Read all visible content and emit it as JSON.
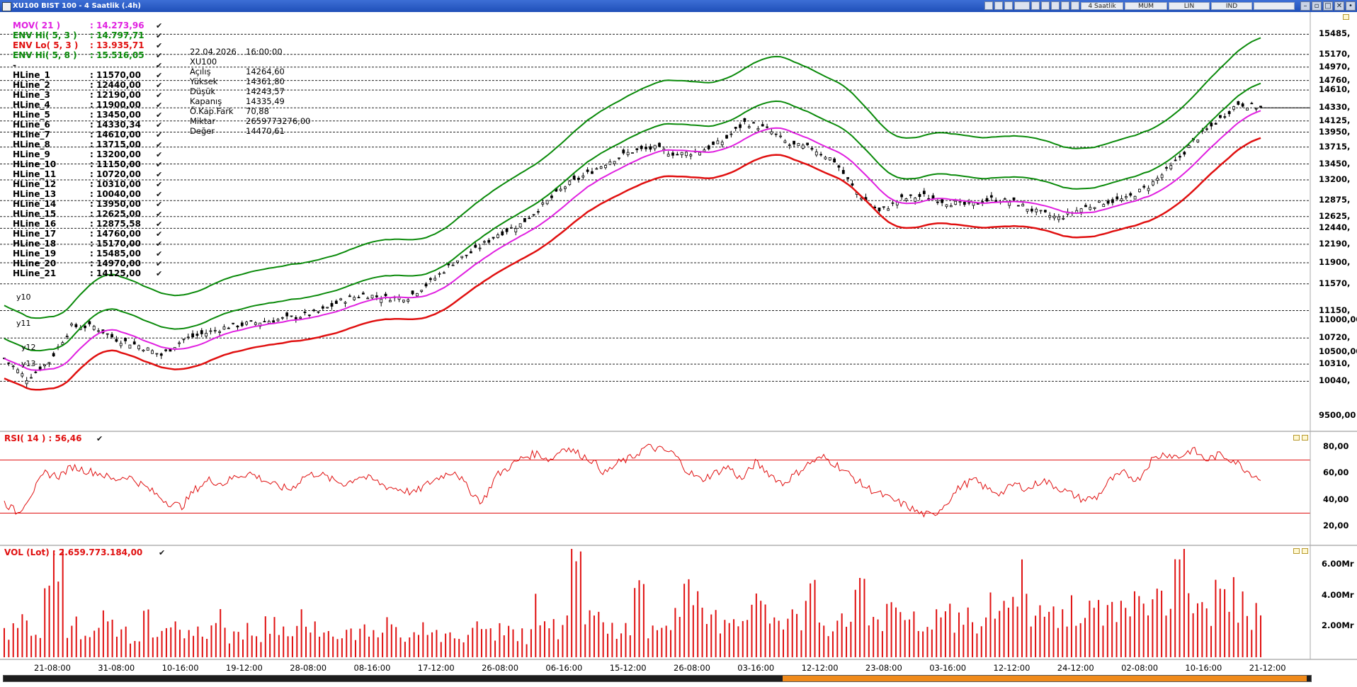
{
  "window": {
    "title": "XU100 BIST 100 - 4 Saatlik (.4h)"
  },
  "toolbar": {
    "period_label": "4 Saatlik",
    "chart_type": "MUM",
    "scale": "LIN",
    "indicator": "IND"
  },
  "legend": {
    "mov": {
      "label": "MOV( 21 )",
      "value": ": 14.273,96"
    },
    "env_hi_53": {
      "label": "ENV Hi( 5, 3 )",
      "value": ": 14.797,71"
    },
    "env_lo_53": {
      "label": "ENV Lo( 5, 3 )",
      "value": ": 13.935,71"
    },
    "env_hi_58": {
      "label": "ENV Hi( 5, 8 )",
      "value": ": 15.516,05"
    },
    "dash": "-",
    "hlines": [
      {
        "label": "HLine_1",
        "value": ": 11570,00"
      },
      {
        "label": "HLine_2",
        "value": ": 12440,00"
      },
      {
        "label": "HLine_3",
        "value": ": 12190,00"
      },
      {
        "label": "HLine_4",
        "value": ": 11900,00"
      },
      {
        "label": "HLine_5",
        "value": ": 13450,00"
      },
      {
        "label": "HLine_6",
        "value": ": 14330,34"
      },
      {
        "label": "HLine_7",
        "value": ": 14610,00"
      },
      {
        "label": "HLine_8",
        "value": ": 13715,00"
      },
      {
        "label": "HLine_9",
        "value": ": 13200,00"
      },
      {
        "label": "HLine_10",
        "value": ": 11150,00"
      },
      {
        "label": "HLine_11",
        "value": ": 10720,00"
      },
      {
        "label": "HLine_12",
        "value": ": 10310,00"
      },
      {
        "label": "HLine_13",
        "value": ": 10040,00"
      },
      {
        "label": "HLine_14",
        "value": ": 13950,00"
      },
      {
        "label": "HLine_15",
        "value": ": 12625,00"
      },
      {
        "label": "HLine_16",
        "value": ": 12875,58"
      },
      {
        "label": "HLine_17",
        "value": ": 14760,00"
      },
      {
        "label": "HLine_18",
        "value": ": 15170,00"
      },
      {
        "label": "HLine_19",
        "value": ": 15485,00"
      },
      {
        "label": "HLine_20",
        "value": ": 14970,00"
      },
      {
        "label": "HLine_21",
        "value": ": 14125,00"
      }
    ]
  },
  "info_box": {
    "date": "22.04.2026",
    "time": "16:00:00",
    "symbol": "XU100",
    "rows": [
      {
        "k": "Açılış",
        "v": "14264,60"
      },
      {
        "k": "Yüksek",
        "v": "14361,80"
      },
      {
        "k": "Düşük",
        "v": "14243,57"
      },
      {
        "k": "Kapanış",
        "v": "14335,49"
      },
      {
        "k": "Ö.Kap.Fark",
        "v": "70,88"
      },
      {
        "k": "Miktar",
        "v": "2659773276,00"
      },
      {
        "k": "Değer",
        "v": "14470,61"
      }
    ]
  },
  "annotations": {
    "y10": "y10",
    "y11": "y11",
    "y12": "y12",
    "y13": "y13"
  },
  "rsi": {
    "label": "RSI( 14 ) : 56,46",
    "levels": [
      30,
      70
    ],
    "ticks": [
      "80,00",
      "60,00",
      "40,00",
      "20,00"
    ]
  },
  "vol": {
    "label": "VOL (Lot) : 2.659.773.184,00",
    "ticks": [
      "6.00Mr",
      "4.00Mr",
      "2.00Mr"
    ]
  },
  "x_labels": [
    "21-08:00",
    "31-08:00",
    "10-16:00",
    "19-12:00",
    "28-08:00",
    "08-16:00",
    "17-12:00",
    "26-08:00",
    "06-16:00",
    "15-12:00",
    "26-08:00",
    "03-16:00",
    "12-12:00",
    "23-08:00",
    "03-16:00",
    "12-12:00",
    "24-12:00",
    "02-08:00",
    "10-16:00",
    "21-12:00"
  ],
  "colors": {
    "mov": "#e020e0",
    "env_hi": "#0a8a0a",
    "env_lo": "#e01010",
    "rsi": "#e01010",
    "vol": "#e01010",
    "title_bg": "#2a5cc8"
  },
  "chart_data": [
    {
      "type": "line",
      "title": "XU100 BIST 100 - 4 Saatlik (.4h)",
      "hlines": [
        11570,
        12440,
        12190,
        11900,
        13450,
        14330.34,
        14610,
        13715,
        13200,
        11150,
        10720,
        10310,
        10040,
        13950,
        12625,
        12875.58,
        14760,
        15170,
        15485,
        14970,
        14125
      ],
      "y_ticks": [
        "15485,",
        "15170,",
        "14970,",
        "14760,",
        "14610,",
        "14330,",
        "14125,",
        "13950,",
        "13715,",
        "13450,",
        "13200,",
        "12875,",
        "12625,",
        "12440,",
        "12190,",
        "11900,",
        "11570,",
        "11150,",
        "11000,00",
        "10720,",
        "10500,00",
        "10310,",
        "10040,",
        "9500,00"
      ],
      "ylim": [
        9300,
        15800
      ],
      "close_path": [
        [
          0,
          10400
        ],
        [
          10,
          10080
        ],
        [
          20,
          10350
        ],
        [
          30,
          10900
        ],
        [
          40,
          10900
        ],
        [
          50,
          10700
        ],
        [
          60,
          10600
        ],
        [
          70,
          10450
        ],
        [
          80,
          10700
        ],
        [
          90,
          10800
        ],
        [
          100,
          10900
        ],
        [
          110,
          10950
        ],
        [
          120,
          11000
        ],
        [
          130,
          11050
        ],
        [
          140,
          11120
        ],
        [
          150,
          11300
        ],
        [
          160,
          11400
        ],
        [
          170,
          11350
        ],
        [
          180,
          11360
        ],
        [
          190,
          11600
        ],
        [
          200,
          11900
        ],
        [
          210,
          12100
        ],
        [
          220,
          12350
        ],
        [
          230,
          12500
        ],
        [
          240,
          12800
        ],
        [
          250,
          13100
        ],
        [
          260,
          13300
        ],
        [
          270,
          13500
        ],
        [
          280,
          13650
        ],
        [
          290,
          13700
        ],
        [
          300,
          13600
        ],
        [
          310,
          13650
        ],
        [
          320,
          13800
        ],
        [
          330,
          14100
        ],
        [
          340,
          14000
        ],
        [
          350,
          13750
        ],
        [
          360,
          13700
        ],
        [
          370,
          13500
        ],
        [
          380,
          13000
        ],
        [
          390,
          12700
        ],
        [
          400,
          12900
        ],
        [
          410,
          12950
        ],
        [
          420,
          12850
        ],
        [
          430,
          12800
        ],
        [
          440,
          12900
        ],
        [
          450,
          12850
        ],
        [
          460,
          12700
        ],
        [
          470,
          12600
        ],
        [
          480,
          12750
        ],
        [
          490,
          12850
        ],
        [
          500,
          12900
        ],
        [
          510,
          13100
        ],
        [
          520,
          13400
        ],
        [
          530,
          13800
        ],
        [
          540,
          14100
        ],
        [
          550,
          14400
        ],
        [
          560,
          14330
        ]
      ],
      "series": [
        {
          "name": "MOV( 21 )",
          "values_last": 14273.96
        },
        {
          "name": "ENV Hi( 5, 3 )",
          "values_last": 14797.71
        },
        {
          "name": "ENV Lo( 5, 3 )",
          "values_last": 13935.71
        },
        {
          "name": "ENV Hi( 5, 8 )",
          "values_last": 15516.05
        }
      ]
    },
    {
      "type": "line",
      "title": "RSI( 14 ) : 56,46",
      "ylim": [
        10,
        90
      ],
      "values": [
        38,
        30,
        45,
        60,
        58,
        65,
        62,
        60,
        55,
        58,
        52,
        45,
        38,
        35,
        48,
        55,
        52,
        58,
        60,
        55,
        50,
        48,
        58,
        60,
        55,
        52,
        58,
        55,
        50,
        48,
        45,
        52,
        58,
        62,
        48,
        38,
        58,
        65,
        72,
        75,
        70,
        80,
        75,
        70,
        60,
        68,
        72,
        80,
        78,
        75,
        62,
        55,
        60,
        65,
        55,
        68,
        60,
        52,
        60,
        68,
        72,
        66,
        58,
        50,
        45,
        40,
        36,
        30,
        28,
        38,
        50,
        55,
        48,
        45,
        52,
        48,
        55,
        50,
        45,
        40,
        42,
        55,
        60,
        55,
        70,
        75,
        72,
        78,
        70,
        74,
        70,
        62,
        56
      ]
    },
    {
      "type": "bar",
      "title": "VOL (Lot) : 2.659.773.184,00",
      "ylim": [
        0,
        7
      ],
      "values_mr": [
        1.8,
        2.5,
        1.5,
        4.1,
        6.3,
        2.2,
        1.3,
        1.9,
        2.8,
        2.0,
        1.6,
        3.0,
        1.7,
        2.2,
        1.5,
        2.4,
        1.8,
        3.2,
        1.6,
        2.0,
        1.4,
        2.6,
        1.9,
        1.7,
        2.9,
        2.1,
        1.5,
        1.8,
        1.6,
        1.9,
        1.7,
        2.1,
        1.4,
        1.8,
        2.0,
        1.6,
        1.5,
        1.7,
        1.9,
        1.6,
        2.2,
        1.8,
        1.5,
        3.5,
        2.0,
        2.7,
        6.2,
        3.4,
        2.4,
        2.0,
        1.8,
        4.5,
        2.1,
        1.9,
        2.8,
        4.3,
        3.6,
        2.5,
        2.2,
        2.0,
        4.1,
        3.3,
        2.8,
        2.6,
        2.3,
        4.0,
        2.4,
        2.1,
        2.7,
        5.3,
        2.5,
        2.9,
        3.1,
        2.4,
        2.2,
        2.6,
        3.0,
        2.4,
        2.6,
        2.8,
        3.4,
        3.9,
        5.2,
        3.6,
        2.8,
        3.1,
        3.3,
        2.9,
        3.0,
        3.2,
        3.8,
        4.2,
        3.6,
        3.9,
        4.6,
        7.0,
        3.8,
        3.0,
        6.8,
        4.4,
        3.5,
        2.9,
        2.6
      ]
    }
  ]
}
